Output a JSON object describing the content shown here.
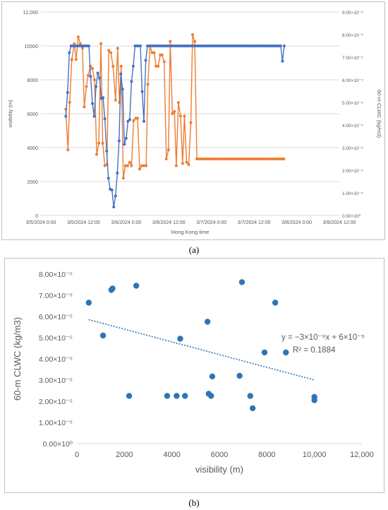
{
  "captions": {
    "a": "(a)",
    "b": "(b)"
  },
  "chart_data": [
    {
      "type": "line",
      "xlabel": "Hong Kong time",
      "ylabel": "visibility (m)",
      "y2label": "60-m CLWC (kg/m3)",
      "x_tick_labels": [
        "3/5/2024 0:00",
        "3/5/2024 12:00",
        "3/6/2024 0:00",
        "3/6/2024 12:00",
        "3/7/2024 0:00",
        "3/7/2024 12:00",
        "3/8/2024 0:00",
        "3/8/2024 12:00"
      ],
      "x_unit": "hours since 3/5/2024 0:00",
      "xlim": [
        0,
        84
      ],
      "ylim": [
        0,
        12000
      ],
      "y_ticks": [
        "0",
        "2000",
        "4000",
        "6000",
        "8000",
        "10000",
        "12,000"
      ],
      "y2lim": [
        0,
        9e-05
      ],
      "y2_ticks": [
        "0.00×10⁰",
        "1.00×10⁻⁵",
        "2.00×10⁻⁵",
        "3.00×10⁻⁵",
        "4.00×10⁻⁵",
        "5.00×10⁻⁵",
        "6.00×10⁻⁵",
        "7.00×10⁻⁵",
        "8.00×10⁻⁵",
        "9.00×10⁻⁵"
      ],
      "grid": true,
      "colors": {
        "visibility": "#4472c4",
        "clwc": "#ed7d31"
      },
      "series": [
        {
          "axis": "left",
          "x": [
            7,
            7.5,
            8,
            8.5,
            9,
            9.5,
            10,
            10.5,
            11,
            11.5,
            12,
            12.5,
            13,
            13.5,
            14,
            14.5,
            15,
            15.5,
            16,
            16.5,
            17,
            17.5,
            18,
            18.5,
            19,
            19.5,
            20,
            20.5,
            21,
            21.5,
            22,
            22.5,
            23,
            23.5,
            24,
            24.5,
            25,
            25.5,
            26,
            26.5,
            27,
            27.5,
            28,
            28.5,
            29,
            29.5,
            30,
            30.5,
            31,
            31.5,
            32,
            32.5,
            33,
            33.5,
            34,
            34.5,
            35,
            35.5,
            36,
            36.5,
            37,
            37.5,
            38,
            38.5,
            39,
            39.5,
            40,
            40.5,
            41,
            41.5,
            42,
            42.5,
            43,
            43.5,
            44,
            44.5,
            45,
            45.5,
            46,
            46.5,
            47,
            47.5,
            48,
            48.5,
            49,
            49.5,
            50,
            50.5,
            51,
            51.5,
            52,
            52.5,
            53,
            53.5,
            54,
            54.5,
            55,
            55.5,
            56,
            56.5,
            57,
            57.5,
            58,
            58.5,
            59,
            59.5,
            60,
            60.5,
            61,
            61.5,
            62,
            62.5,
            63,
            63.5,
            64,
            64.5,
            65,
            65.5,
            66,
            66.5,
            67,
            67.5,
            68,
            68.5
          ],
          "values": [
            5850,
            7250,
            9600,
            10000,
            10000,
            10000,
            10000,
            10000,
            10000,
            10000,
            10000,
            10000,
            10000,
            10000,
            8200,
            6600,
            5850,
            7600,
            8400,
            8100,
            6900,
            6950,
            5700,
            3800,
            2200,
            1550,
            1500,
            500,
            1150,
            2500,
            4400,
            8350,
            7450,
            4200,
            4550,
            5550,
            5650,
            7900,
            8800,
            10000,
            10000,
            10000,
            10000,
            7300,
            5550,
            9150,
            10000,
            10000,
            10000,
            10000,
            10000,
            10000,
            10000,
            10000,
            10000,
            10000,
            10000,
            10000,
            10000,
            10000,
            10000,
            10000,
            10000,
            10000,
            10000,
            10000,
            10000,
            10000,
            10000,
            10000,
            10000,
            10000,
            10000,
            10000,
            10000,
            10000,
            10000,
            10000,
            10000,
            10000,
            10000,
            10000,
            10000,
            10000,
            10000,
            10000,
            10000,
            10000,
            10000,
            10000,
            10000,
            10000,
            10000,
            10000,
            10000,
            10000,
            10000,
            10000,
            10000,
            10000,
            10000,
            10000,
            10000,
            10000,
            10000,
            10000,
            10000,
            10000,
            10000,
            10000,
            10000,
            10000,
            10000,
            10000,
            10000,
            10000,
            10000,
            10000,
            10000,
            10000,
            10000,
            10000,
            9100,
            10000
          ]
        },
        {
          "axis": "right",
          "x": [
            7,
            7.6,
            8.1,
            8.7,
            9.4,
            9.9,
            10.5,
            11.1,
            11.7,
            12.2,
            12.8,
            13.3,
            13.9,
            14.5,
            15.1,
            15.7,
            16.3,
            16.9,
            17.4,
            18,
            18.6,
            19.1,
            19.7,
            20.3,
            21,
            21.6,
            22.1,
            22.6,
            23.2,
            23.8,
            24.4,
            25,
            25.5,
            26.1,
            26.7,
            27.2,
            27.8,
            28.4,
            29,
            29.6,
            30.1,
            30.7,
            31.3,
            31.9,
            32.4,
            33,
            33.6,
            34.1,
            34.7,
            35.3,
            35.9,
            36.4,
            37,
            37.6,
            38.1,
            38.7,
            39.3,
            39.9,
            40.4,
            41,
            41.6,
            42.2,
            42.7,
            43.3,
            43.9,
            44.4,
            45,
            45.6,
            46.2,
            46.7,
            47.3,
            47.9,
            48.4,
            49,
            49.6,
            50.1,
            50.7,
            51.3,
            51.9,
            52.4,
            53,
            53.6,
            54.2,
            54.7,
            55.3,
            55.9,
            56.4,
            57,
            57.6,
            58.2,
            58.7,
            59.3,
            59.9,
            60.4,
            61,
            61.6,
            62.2,
            62.7,
            63.3,
            63.9,
            64.4,
            65,
            65.6,
            66.2,
            66.7,
            67.3,
            67.9,
            68.4
          ],
          "values": [
            4.7e-05,
            2.9e-05,
            5e-05,
            6.9e-05,
            7.6e-05,
            6.9e-05,
            7.9e-05,
            7.6e-05,
            7.4e-05,
            4.8e-05,
            5.7e-05,
            6.2e-05,
            6.6e-05,
            6.5e-05,
            6e-05,
            2.7e-05,
            3.2e-05,
            7.6e-05,
            3.2e-05,
            2.2e-05,
            2.25e-05,
            7.3e-05,
            7.2e-05,
            6.6e-05,
            5.1e-05,
            7.4e-05,
            5e-05,
            6.6e-05,
            1.65e-05,
            2.2e-05,
            2.2e-05,
            2.35e-05,
            2.2e-05,
            4.2e-05,
            4.3e-05,
            4.3e-05,
            2.05e-05,
            2.2e-05,
            2.2e-05,
            2.2e-05,
            5.8e-05,
            7.5e-05,
            7.2e-05,
            7.2e-05,
            6.6e-05,
            6.6e-05,
            7.1e-05,
            7.1e-05,
            6.8e-05,
            2.5e-05,
            2.9e-05,
            7.7e-05,
            4.5e-05,
            4.6e-05,
            2.2e-05,
            5e-05,
            4.4e-05,
            2.3e-05,
            4.4e-05,
            2.35e-05,
            2.25e-05,
            4.1e-05,
            8e-05,
            7.7e-05,
            2.5e-05,
            2.5e-05,
            2.5e-05,
            2.5e-05,
            2.5e-05,
            2.5e-05,
            2.5e-05,
            2.5e-05,
            2.5e-05,
            2.5e-05,
            2.5e-05,
            2.5e-05,
            2.5e-05,
            2.5e-05,
            2.5e-05,
            2.5e-05,
            2.5e-05,
            2.5e-05,
            2.5e-05,
            2.5e-05,
            2.5e-05,
            2.5e-05,
            2.5e-05,
            2.5e-05,
            2.5e-05,
            2.5e-05,
            2.5e-05,
            2.5e-05,
            2.5e-05,
            2.5e-05,
            2.5e-05,
            2.5e-05,
            2.5e-05,
            2.5e-05,
            2.5e-05,
            2.5e-05,
            2.5e-05,
            2.5e-05,
            2.5e-05,
            2.5e-05,
            2.5e-05,
            2.5e-05,
            2.5e-05,
            2.5e-05
          ]
        }
      ]
    },
    {
      "type": "scatter",
      "xlabel": "visibility (m)",
      "ylabel": "60-m CLWC (kg/m3)",
      "xlim": [
        0,
        12000
      ],
      "x_ticks": [
        "0",
        "2000",
        "4000",
        "6000",
        "8000",
        "10,000",
        "12,000"
      ],
      "ylim": [
        0,
        8e-05
      ],
      "y_ticks": [
        "0.00×10⁰",
        "1.00×10⁻⁵",
        "2.00×10⁻⁵",
        "3.00×10⁻⁵",
        "4.00×10⁻⁵",
        "5.00×10⁻⁵",
        "6.00×10⁻⁵",
        "7.00×10⁻⁵",
        "8.00×10⁻⁵"
      ],
      "grid": false,
      "color": "#2e75b6",
      "points": [
        [
          500,
          6.65e-05
        ],
        [
          1100,
          5.1e-05
        ],
        [
          1450,
          7.25e-05
        ],
        [
          1500,
          7.32e-05
        ],
        [
          2200,
          2.25e-05
        ],
        [
          2500,
          7.45e-05
        ],
        [
          3800,
          2.25e-05
        ],
        [
          4200,
          2.25e-05
        ],
        [
          4350,
          4.95e-05
        ],
        [
          4550,
          2.25e-05
        ],
        [
          5500,
          5.75e-05
        ],
        [
          5550,
          2.35e-05
        ],
        [
          5650,
          2.25e-05
        ],
        [
          5700,
          3.17e-05
        ],
        [
          6850,
          3.2e-05
        ],
        [
          6950,
          7.62e-05
        ],
        [
          7300,
          2.25e-05
        ],
        [
          7400,
          1.67e-05
        ],
        [
          7900,
          4.3e-05
        ],
        [
          8350,
          6.65e-05
        ],
        [
          8800,
          4.3e-05
        ],
        [
          10000,
          2.2e-05
        ],
        [
          10000,
          2.05e-05
        ]
      ],
      "trendline": {
        "slope": -3e-09,
        "intercept": 6e-05
      },
      "equation": "y = −3×10⁻⁹x + 6×10⁻⁵",
      "r_squared": "R² = 0.1884"
    }
  ]
}
